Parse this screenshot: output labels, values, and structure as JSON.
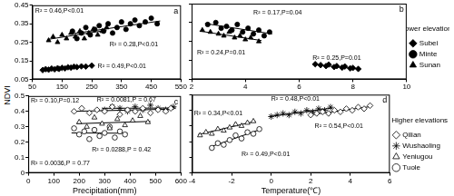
{
  "figure": {
    "ylabel": "NDVI"
  },
  "chart_data": [
    {
      "type": "scatter",
      "panel": "a",
      "grid": false,
      "xlim": [
        50,
        550
      ],
      "xticks": [
        50,
        150,
        250,
        350,
        450,
        550
      ],
      "ylim": [
        0.05,
        0.45
      ],
      "yticks": [
        0.05,
        0.15,
        0.25,
        0.35,
        0.45
      ],
      "series": [
        {
          "name": "Subei",
          "color": "#000000",
          "marker": "filled_diamond",
          "x": [
            85,
            95,
            105,
            115,
            125,
            135,
            140,
            150,
            160,
            170,
            180,
            190,
            200,
            215,
            230,
            250
          ],
          "values": [
            0.1,
            0.105,
            0.102,
            0.108,
            0.104,
            0.11,
            0.106,
            0.112,
            0.109,
            0.115,
            0.113,
            0.118,
            0.116,
            0.12,
            0.119,
            0.124
          ]
        },
        {
          "name": "Minte",
          "color": "#000000",
          "marker": "filled_circle",
          "x": [
            185,
            200,
            215,
            230,
            245,
            260,
            275,
            290,
            305,
            320,
            335,
            350,
            365,
            380,
            395,
            410,
            430,
            450,
            470
          ],
          "values": [
            0.31,
            0.27,
            0.3,
            0.33,
            0.29,
            0.32,
            0.34,
            0.31,
            0.35,
            0.3,
            0.33,
            0.36,
            0.32,
            0.35,
            0.37,
            0.34,
            0.36,
            0.38,
            0.35
          ]
        },
        {
          "name": "Sunan",
          "color": "#000000",
          "marker": "filled_triangle",
          "x": [
            105,
            120,
            135,
            150,
            165,
            180,
            195,
            210,
            225,
            240,
            255,
            270,
            285,
            300
          ],
          "values": [
            0.26,
            0.28,
            0.25,
            0.29,
            0.27,
            0.3,
            0.28,
            0.31,
            0.27,
            0.3,
            0.32,
            0.29,
            0.31,
            0.33
          ]
        },
        {
          "type": "line",
          "color": "#000000",
          "line_style": "solid",
          "x": [
            80,
            255
          ],
          "values": [
            0.101,
            0.124
          ]
        },
        {
          "type": "line",
          "color": "#000000",
          "line_style": "solid",
          "x": [
            180,
            480
          ],
          "values": [
            0.295,
            0.365
          ]
        },
        {
          "type": "line",
          "color": "#000000",
          "line_style": "solid",
          "x": [
            100,
            300
          ],
          "values": [
            0.265,
            0.315
          ]
        }
      ],
      "annotations": [
        {
          "text": "R² = 0.46,P<0.01",
          "x": 60,
          "y": 0.42
        },
        {
          "text": "R² = 0.28,P<0.01",
          "x": 310,
          "y": 0.24
        },
        {
          "text": "R² = 0.49,P<0.01",
          "x": 270,
          "y": 0.12
        }
      ]
    },
    {
      "type": "scatter",
      "panel": "b",
      "group": "Lower elevations",
      "grid": false,
      "legend": "right",
      "tick_labels": "x",
      "xlim": [
        2,
        10
      ],
      "xticks": [
        2,
        4,
        6,
        8,
        10
      ],
      "ylim": [
        0.05,
        0.45
      ],
      "yticks": [
        0.05,
        0.15,
        0.25,
        0.35,
        0.45
      ],
      "series": [
        {
          "name": "Subei",
          "color": "#000000",
          "marker": "filled_diamond",
          "x": [
            6.6,
            6.8,
            7.0,
            7.1,
            7.3,
            7.4,
            7.6,
            7.7,
            7.9,
            8.0,
            8.2
          ],
          "values": [
            0.13,
            0.125,
            0.12,
            0.128,
            0.115,
            0.12,
            0.112,
            0.118,
            0.108,
            0.11,
            0.105
          ]
        },
        {
          "name": "Minte",
          "color": "#000000",
          "marker": "filled_circle",
          "x": [
            2.6,
            2.9,
            3.1,
            3.3,
            3.5,
            3.7,
            3.9,
            4.1,
            4.3,
            4.5,
            4.7,
            4.9
          ],
          "values": [
            0.34,
            0.35,
            0.32,
            0.33,
            0.31,
            0.34,
            0.3,
            0.32,
            0.29,
            0.31,
            0.28,
            0.3
          ]
        },
        {
          "name": "Sunan",
          "color": "#000000",
          "marker": "filled_triangle",
          "x": [
            2.4,
            2.7,
            3.0,
            3.2,
            3.4,
            3.6,
            3.8,
            4.0,
            4.2,
            4.5
          ],
          "values": [
            0.31,
            0.3,
            0.29,
            0.28,
            0.3,
            0.27,
            0.28,
            0.26,
            0.27,
            0.25
          ]
        },
        {
          "type": "line",
          "color": "#000000",
          "line_style": "solid",
          "x": [
            6.5,
            8.3
          ],
          "values": [
            0.128,
            0.104
          ]
        },
        {
          "type": "line",
          "color": "#000000",
          "line_style": "solid",
          "x": [
            2.5,
            5
          ],
          "values": [
            0.345,
            0.29
          ]
        },
        {
          "type": "line",
          "color": "#000000",
          "line_style": "solid",
          "x": [
            2.3,
            4.6
          ],
          "values": [
            0.305,
            0.255
          ]
        }
      ],
      "annotations": [
        {
          "text": "R² = 0.17,P=0.04",
          "x": 4.3,
          "y": 0.4
        },
        {
          "text": "R² = 0.24,P=0.01",
          "x": 2.2,
          "y": 0.19
        },
        {
          "text": "R² = 0.25,P=0.01",
          "x": 6.5,
          "y": 0.16
        }
      ]
    },
    {
      "type": "scatter",
      "panel": "c",
      "grid": false,
      "xlabel": "Precipitation(mm)",
      "xlim": [
        0,
        600
      ],
      "xticks": [
        0,
        100,
        200,
        300,
        400,
        500,
        600
      ],
      "ylim": [
        0,
        0.5
      ],
      "yticks": [
        0,
        0.1,
        0.2,
        0.3,
        0.4,
        0.5
      ],
      "series": [
        {
          "name": "Qilian",
          "color": "#000000",
          "marker": "open_diamond",
          "x": [
            180,
            210,
            240,
            270,
            300,
            330,
            360,
            390,
            420,
            450,
            480,
            510,
            540,
            560
          ],
          "values": [
            0.4,
            0.42,
            0.39,
            0.41,
            0.4,
            0.43,
            0.38,
            0.41,
            0.4,
            0.42,
            0.39,
            0.41,
            0.4,
            0.42
          ]
        },
        {
          "name": "Wushaoling",
          "color": "#000000",
          "marker": "star",
          "x": [
            300,
            330,
            360,
            390,
            420,
            450,
            480,
            510,
            540,
            570
          ],
          "values": [
            0.41,
            0.43,
            0.42,
            0.4,
            0.43,
            0.41,
            0.44,
            0.42,
            0.41,
            0.43
          ]
        },
        {
          "name": "Yeniugou",
          "color": "#000000",
          "marker": "open_triangle",
          "x": [
            200,
            230,
            260,
            290,
            320,
            350,
            380,
            410,
            440,
            470
          ],
          "values": [
            0.33,
            0.3,
            0.36,
            0.32,
            0.29,
            0.35,
            0.31,
            0.34,
            0.37,
            0.33
          ]
        },
        {
          "name": "Tuole",
          "color": "#000000",
          "marker": "open_circle",
          "x": [
            180,
            200,
            220,
            240,
            260,
            280,
            300,
            320,
            340,
            360,
            380
          ],
          "values": [
            0.29,
            0.25,
            0.27,
            0.22,
            0.28,
            0.24,
            0.26,
            0.3,
            0.23,
            0.27,
            0.25
          ]
        },
        {
          "type": "line",
          "color": "#000000",
          "line_style": "solid",
          "x": [
            170,
            570
          ],
          "values": [
            0.4,
            0.415
          ]
        },
        {
          "type": "line",
          "color": "#000000",
          "line_style": "solid",
          "x": [
            290,
            580
          ],
          "values": [
            0.42,
            0.422
          ]
        },
        {
          "type": "line",
          "color": "#000000",
          "line_style": "solid",
          "x": [
            190,
            480
          ],
          "values": [
            0.32,
            0.335
          ]
        },
        {
          "type": "line",
          "color": "#000000",
          "line_style": "solid",
          "x": [
            170,
            390
          ],
          "values": [
            0.26,
            0.258
          ]
        }
      ],
      "annotations": [
        {
          "text": "R² = 0.10,P=0.12",
          "x": 10,
          "y": 0.47
        },
        {
          "text": "R² = 0.0081,P = 0.67",
          "x": 270,
          "y": 0.475
        },
        {
          "text": "R² = 0.0036,P = 0.77",
          "x": 10,
          "y": 0.06
        },
        {
          "text": "R² = 0.0288,P = 0.42",
          "x": 250,
          "y": 0.15
        }
      ]
    },
    {
      "type": "scatter",
      "panel": "d",
      "group": "Higher elevations",
      "grid": false,
      "legend": "right",
      "tick_labels": "x",
      "xlabel": "Temperature(℃)",
      "xlim": [
        -4,
        6
      ],
      "xticks": [
        -4,
        -2,
        0,
        2,
        4,
        6
      ],
      "ylim": [
        0,
        0.5
      ],
      "yticks": [
        0,
        0.1,
        0.2,
        0.3,
        0.4,
        0.5
      ],
      "series": [
        {
          "name": "Qilian",
          "color": "#000000",
          "marker": "open_diamond",
          "x": [
            2.0,
            2.3,
            2.6,
            2.9,
            3.2,
            3.5,
            3.8,
            4.1,
            4.4,
            4.7,
            5.0
          ],
          "values": [
            0.37,
            0.38,
            0.39,
            0.38,
            0.4,
            0.39,
            0.41,
            0.4,
            0.42,
            0.41,
            0.43
          ]
        },
        {
          "name": "Wushaoling",
          "color": "#000000",
          "marker": "star",
          "x": [
            0.0,
            0.3,
            0.6,
            0.9,
            1.2,
            1.5,
            1.8,
            2.1,
            2.4,
            2.7,
            3.0
          ],
          "values": [
            0.36,
            0.37,
            0.38,
            0.37,
            0.39,
            0.38,
            0.4,
            0.39,
            0.41,
            0.4,
            0.42
          ]
        },
        {
          "name": "Yeniugou",
          "color": "#000000",
          "marker": "open_triangle",
          "x": [
            -3.6,
            -3.3,
            -3.0,
            -2.7,
            -2.4,
            -2.1,
            -1.8,
            -1.5,
            -1.2,
            -0.9
          ],
          "values": [
            0.24,
            0.26,
            0.25,
            0.28,
            0.27,
            0.29,
            0.31,
            0.3,
            0.32,
            0.33
          ]
        },
        {
          "name": "Tuole",
          "color": "#000000",
          "marker": "open_circle",
          "x": [
            -3.0,
            -2.7,
            -2.4,
            -2.1,
            -1.8,
            -1.5,
            -1.2,
            -0.9,
            -0.6
          ],
          "values": [
            0.16,
            0.19,
            0.18,
            0.21,
            0.24,
            0.22,
            0.26,
            0.25,
            0.28
          ]
        },
        {
          "type": "line",
          "color": "#000000",
          "line_style": "solid",
          "x": [
            1.9,
            5.1
          ],
          "values": [
            0.37,
            0.425
          ]
        },
        {
          "type": "line",
          "color": "#000000",
          "line_style": "solid",
          "x": [
            -0.1,
            3.1
          ],
          "values": [
            0.36,
            0.415
          ]
        },
        {
          "type": "line",
          "color": "#000000",
          "line_style": "solid",
          "x": [
            -3.7,
            -0.8
          ],
          "values": [
            0.245,
            0.33
          ]
        },
        {
          "type": "line",
          "color": "#000000",
          "line_style": "solid",
          "x": [
            -3.1,
            -0.5
          ],
          "values": [
            0.165,
            0.28
          ]
        }
      ],
      "annotations": [
        {
          "text": "R² = 0.48,P<0.01",
          "x": 0,
          "y": 0.47
        },
        {
          "text": "R² = 0.34,P<0.01",
          "x": -3.9,
          "y": 0.38
        },
        {
          "text": "R² = 0.54,P<0.01",
          "x": 2.2,
          "y": 0.3
        },
        {
          "text": "R² = 0.49,P<0.01",
          "x": -1.5,
          "y": 0.12
        }
      ]
    }
  ]
}
